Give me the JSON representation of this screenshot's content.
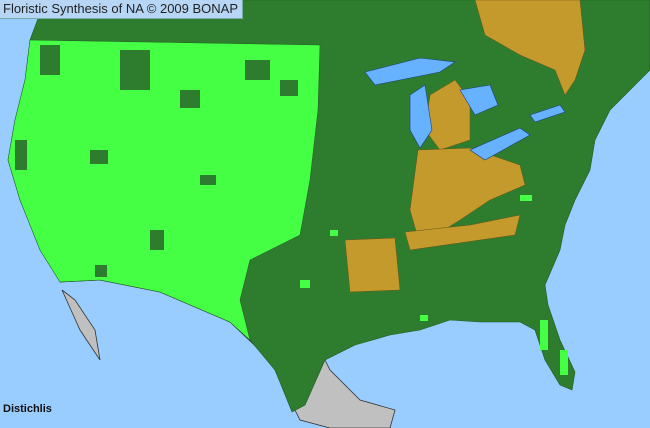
{
  "map": {
    "title": "Floristic Synthesis of NA © 2009 BONAP",
    "taxon": "Distichlis",
    "colors": {
      "ocean": "#99ccff",
      "lakes": "#66b2ff",
      "present_native": "#2e7d2e",
      "present_bright": "#44ff44",
      "absent_tan": "#c49a2c",
      "mexico_gray": "#c0c0c0"
    }
  }
}
